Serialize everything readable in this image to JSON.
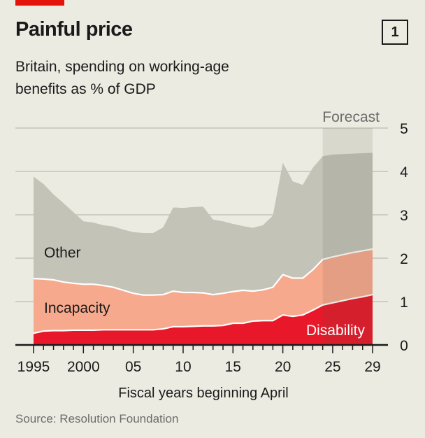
{
  "header": {
    "title": "Painful price",
    "chart_number": "1",
    "subtitle_lines": [
      "Britain, spending on working-age",
      "benefits as % of GDP"
    ]
  },
  "source": "Source: Resolution Foundation",
  "colors": {
    "other": "#c4c3b8",
    "incapacity": "#f7a98d",
    "disability": "#e8182a",
    "forecast_overlay": "#555040",
    "accent": "#e3120b"
  },
  "chart_data": {
    "type": "area",
    "stacked": true,
    "title": "Painful price",
    "subtitle": "Britain, spending on working-age benefits as % of GDP",
    "xlabel": "Fiscal years beginning April",
    "ylabel": "",
    "ylim": [
      0,
      5
    ],
    "yticks": [
      "0",
      "1",
      "2",
      "3",
      "4",
      "5"
    ],
    "xlim": [
      1995,
      2029
    ],
    "xtick_years": [
      1995,
      2000,
      2005,
      2010,
      2015,
      2020,
      2025,
      2029
    ],
    "xtick_labels": [
      "1995",
      "2000",
      "05",
      "10",
      "15",
      "20",
      "25",
      "29"
    ],
    "grid": true,
    "forecast": {
      "label": "Forecast",
      "from": 2024,
      "to": 2029
    },
    "x": [
      1995,
      1996,
      1997,
      1998,
      1999,
      2000,
      2001,
      2002,
      2003,
      2004,
      2005,
      2006,
      2007,
      2008,
      2009,
      2010,
      2011,
      2012,
      2013,
      2014,
      2015,
      2016,
      2017,
      2018,
      2019,
      2020,
      2021,
      2022,
      2023,
      2024,
      2025,
      2026,
      2027,
      2028,
      2029
    ],
    "series": [
      {
        "name": "Disability",
        "values": [
          0.27,
          0.32,
          0.33,
          0.33,
          0.34,
          0.34,
          0.34,
          0.35,
          0.35,
          0.35,
          0.35,
          0.35,
          0.35,
          0.37,
          0.42,
          0.42,
          0.43,
          0.44,
          0.44,
          0.45,
          0.5,
          0.5,
          0.55,
          0.56,
          0.56,
          0.69,
          0.66,
          0.69,
          0.8,
          0.92,
          0.97,
          1.02,
          1.07,
          1.11,
          1.16
        ]
      },
      {
        "name": "Incapacity",
        "values": [
          1.26,
          1.2,
          1.17,
          1.12,
          1.08,
          1.06,
          1.06,
          1.02,
          0.98,
          0.91,
          0.84,
          0.8,
          0.8,
          0.79,
          0.82,
          0.79,
          0.78,
          0.76,
          0.72,
          0.74,
          0.73,
          0.76,
          0.69,
          0.71,
          0.77,
          0.93,
          0.88,
          0.85,
          0.93,
          1.05,
          1.06,
          1.06,
          1.06,
          1.06,
          1.05
        ]
      },
      {
        "name": "Other",
        "values": [
          2.35,
          2.19,
          1.97,
          1.82,
          1.64,
          1.45,
          1.42,
          1.39,
          1.4,
          1.4,
          1.41,
          1.43,
          1.43,
          1.55,
          1.93,
          1.95,
          1.97,
          1.99,
          1.73,
          1.66,
          1.56,
          1.48,
          1.46,
          1.49,
          1.65,
          2.58,
          2.23,
          2.15,
          2.35,
          2.38,
          2.36,
          2.32,
          2.28,
          2.25,
          2.22
        ]
      }
    ]
  }
}
